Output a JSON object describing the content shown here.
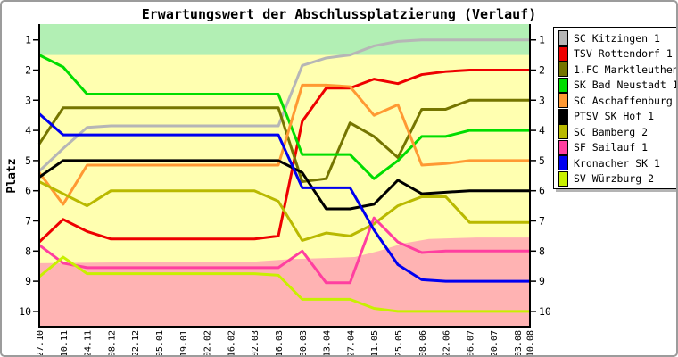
{
  "chart_data": {
    "type": "line",
    "title": "Erwartungswert der Abschlussplatzierung (Verlauf)",
    "ylabel": "Platz",
    "y_axis": {
      "min": 1,
      "max": 10,
      "inverted": true,
      "ticks": [
        1,
        2,
        3,
        4,
        5,
        6,
        7,
        8,
        9,
        10
      ],
      "labels_on_both_sides": true
    },
    "x_labels": [
      "27.10",
      "10.11",
      "24.11",
      "08.12",
      "22.12",
      "05.01",
      "19.01",
      "02.02",
      "16.02",
      "02.03",
      "16.03",
      "30.03",
      "13.04",
      "27.04",
      "11.05",
      "25.05",
      "08.06",
      "22.06",
      "06.07",
      "20.07",
      "03.08",
      "10.08"
    ],
    "zones": {
      "promotion_color": "#b2efb4",
      "mid_color": "#ffffb0",
      "relegation_color": "#ffb3b3",
      "promotion_until_platz": 1.5,
      "relegation_boundary": [
        {
          "xi": 0,
          "platz": 8.4
        },
        {
          "xi": 4,
          "platz": 8.37
        },
        {
          "xi": 9,
          "platz": 8.35
        },
        {
          "xi": 10.5,
          "platz": 8.27
        },
        {
          "xi": 13.2,
          "platz": 8.2
        },
        {
          "xi": 14.2,
          "platz": 8.0
        },
        {
          "xi": 15.2,
          "platz": 7.75
        },
        {
          "xi": 16.3,
          "platz": 7.6
        },
        {
          "xi": 18.3,
          "platz": 7.55
        },
        {
          "xi": 21,
          "platz": 7.55
        }
      ]
    },
    "series": [
      {
        "name": "SC Kitzingen 1",
        "color": "#b6b6b6",
        "values": [
          5.35,
          4.6,
          3.9,
          3.85,
          3.85,
          3.85,
          3.85,
          3.85,
          3.85,
          3.85,
          3.85,
          1.85,
          1.6,
          1.5,
          1.2,
          1.05,
          1.0,
          1.0,
          1.0,
          1.0,
          1.0,
          1.0
        ]
      },
      {
        "name": "TSV Rottendorf 1",
        "color": "#ee0000",
        "values": [
          7.7,
          6.95,
          7.35,
          7.6,
          7.6,
          7.6,
          7.6,
          7.6,
          7.6,
          7.6,
          7.5,
          3.7,
          2.6,
          2.6,
          2.3,
          2.45,
          2.15,
          2.05,
          2.0,
          2.0,
          2.0,
          2.0
        ]
      },
      {
        "name": "1.FC Marktleuthen 1",
        "color": "#757500",
        "values": [
          4.45,
          3.25,
          3.25,
          3.25,
          3.25,
          3.25,
          3.25,
          3.25,
          3.25,
          3.25,
          3.25,
          5.7,
          5.6,
          3.75,
          4.2,
          4.9,
          3.3,
          3.3,
          3.0,
          3.0,
          3.0,
          3.0
        ]
      },
      {
        "name": "SK Bad Neustadt 1",
        "color": "#00dd00",
        "values": [
          1.5,
          1.9,
          2.8,
          2.8,
          2.8,
          2.8,
          2.8,
          2.8,
          2.8,
          2.8,
          2.8,
          4.8,
          4.8,
          4.8,
          5.6,
          5.0,
          4.2,
          4.2,
          4.0,
          4.0,
          4.0,
          4.0
        ]
      },
      {
        "name": "SC Aschaffenburg 1",
        "color": "#ff9933",
        "values": [
          5.4,
          6.45,
          5.15,
          5.15,
          5.15,
          5.15,
          5.15,
          5.15,
          5.15,
          5.15,
          5.15,
          2.5,
          2.5,
          2.55,
          3.5,
          3.15,
          5.15,
          5.1,
          5.0,
          5.0,
          5.0,
          5.0
        ]
      },
      {
        "name": "PTSV SK Hof 1",
        "color": "#000000",
        "values": [
          5.55,
          5.0,
          5.0,
          5.0,
          5.0,
          5.0,
          5.0,
          5.0,
          5.0,
          5.0,
          5.0,
          5.4,
          6.6,
          6.6,
          6.45,
          5.65,
          6.1,
          6.05,
          6.0,
          6.0,
          6.0,
          6.0
        ]
      },
      {
        "name": "SC Bamberg 2",
        "color": "#b9b900",
        "values": [
          5.7,
          6.1,
          6.5,
          6.0,
          6.0,
          6.0,
          6.0,
          6.0,
          6.0,
          6.0,
          6.35,
          7.65,
          7.4,
          7.5,
          7.1,
          6.5,
          6.2,
          6.2,
          7.05,
          7.05,
          7.05,
          7.05
        ]
      },
      {
        "name": "SF Sailauf 1",
        "color": "#ff3fa0",
        "values": [
          7.8,
          8.4,
          8.55,
          8.55,
          8.55,
          8.55,
          8.55,
          8.55,
          8.55,
          8.55,
          8.55,
          8.0,
          9.05,
          9.05,
          6.9,
          7.7,
          8.05,
          8.0,
          8.0,
          8.0,
          8.0,
          8.0
        ]
      },
      {
        "name": "Kronacher SK 1",
        "color": "#0000f0",
        "values": [
          3.45,
          4.15,
          4.15,
          4.15,
          4.15,
          4.15,
          4.15,
          4.15,
          4.15,
          4.15,
          4.15,
          5.9,
          5.9,
          5.9,
          7.3,
          8.45,
          8.95,
          9.0,
          9.0,
          9.0,
          9.0,
          9.0
        ]
      },
      {
        "name": "SV Würzburg 2",
        "color": "#c8f000",
        "values": [
          8.85,
          8.2,
          8.75,
          8.75,
          8.75,
          8.75,
          8.75,
          8.75,
          8.75,
          8.75,
          8.8,
          9.6,
          9.6,
          9.6,
          9.9,
          10.0,
          10.0,
          10.0,
          10.0,
          10.0,
          10.0,
          10.0
        ]
      }
    ],
    "legend_position": "top-right"
  }
}
